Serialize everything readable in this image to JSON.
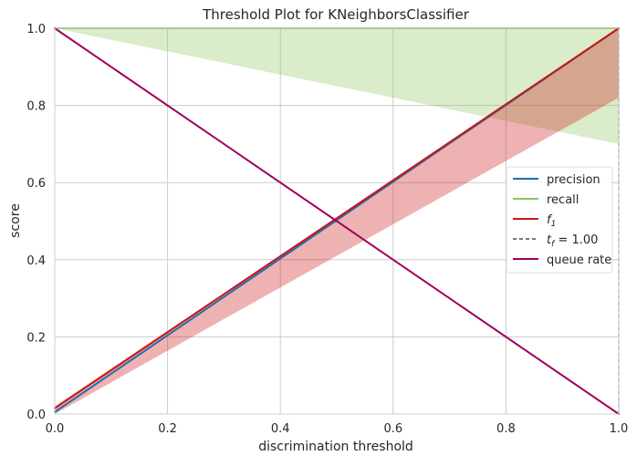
{
  "chart_data": {
    "type": "line",
    "title": "Threshold Plot for KNeighborsClassifier",
    "xlabel": "discrimination threshold",
    "ylabel": "score",
    "xlim": [
      0,
      1
    ],
    "ylim": [
      0,
      1
    ],
    "grid": true,
    "legend_position": "center-right",
    "x_ticks": [
      0,
      0.2,
      0.4,
      0.6,
      0.8,
      1.0
    ],
    "x_tick_labels": [
      "0.0",
      "0.2",
      "0.4",
      "0.6",
      "0.8",
      "1.0"
    ],
    "y_ticks": [
      0,
      0.2,
      0.4,
      0.6,
      0.8,
      1.0
    ],
    "y_tick_labels": [
      "0.0",
      "0.2",
      "0.4",
      "0.6",
      "0.8",
      "1.0"
    ],
    "series": [
      {
        "name": "precision",
        "color": "#1f6fb0",
        "x": [
          0,
          1
        ],
        "y": [
          0.005,
          1.0
        ],
        "band": {
          "x": [
            0,
            1
          ],
          "lower": [
            0,
            1
          ],
          "upper": [
            0,
            1
          ]
        }
      },
      {
        "name": "recall",
        "color": "#8fc45f",
        "x": [
          0,
          1
        ],
        "y": [
          1.0,
          1.0
        ],
        "band": {
          "x": [
            0,
            1
          ],
          "lower": [
            1.0,
            0.7
          ],
          "upper": [
            1.0,
            1.0
          ]
        }
      },
      {
        "name": "f_1",
        "color": "#cc1414",
        "x": [
          0,
          1
        ],
        "y": [
          0.015,
          1.0
        ],
        "band": {
          "x": [
            0,
            1
          ],
          "lower": [
            0.0,
            0.82
          ],
          "upper": [
            0.02,
            1.0
          ]
        }
      },
      {
        "name": "t_f = 1.00",
        "color": "#262626",
        "dashed": true,
        "x": [
          1.0,
          1.0
        ],
        "y": [
          0,
          1
        ]
      },
      {
        "name": "queue rate",
        "color": "#a0005a",
        "x": [
          0,
          1
        ],
        "y": [
          1.0,
          0.0
        ]
      }
    ]
  },
  "legend": {
    "items": [
      {
        "label": "precision",
        "color": "#1f6fb0",
        "dashed": false
      },
      {
        "label": "recall",
        "color": "#8fc45f",
        "dashed": false
      },
      {
        "label_main": "f",
        "label_sub": "1",
        "color": "#cc1414",
        "dashed": false
      },
      {
        "label_main": "t",
        "label_sub": "f",
        "label_rest": " = 1.00",
        "color": "#262626",
        "dashed": true
      },
      {
        "label": "queue rate",
        "color": "#a0005a",
        "dashed": false
      }
    ]
  }
}
